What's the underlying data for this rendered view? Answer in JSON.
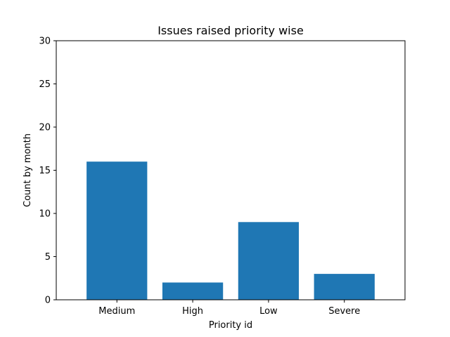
{
  "chart_data": {
    "type": "bar",
    "title": "Issues raised priority wise",
    "xlabel": "Priority id",
    "ylabel": "Count by month",
    "categories": [
      "Medium",
      "High",
      "Low",
      "Severe"
    ],
    "values": [
      16,
      2,
      9,
      3
    ],
    "ylim": [
      0,
      30
    ],
    "yticks": [
      "0",
      "5",
      "10",
      "15",
      "20",
      "25",
      "30"
    ],
    "grid": false,
    "bar_color": "#1f77b4"
  }
}
